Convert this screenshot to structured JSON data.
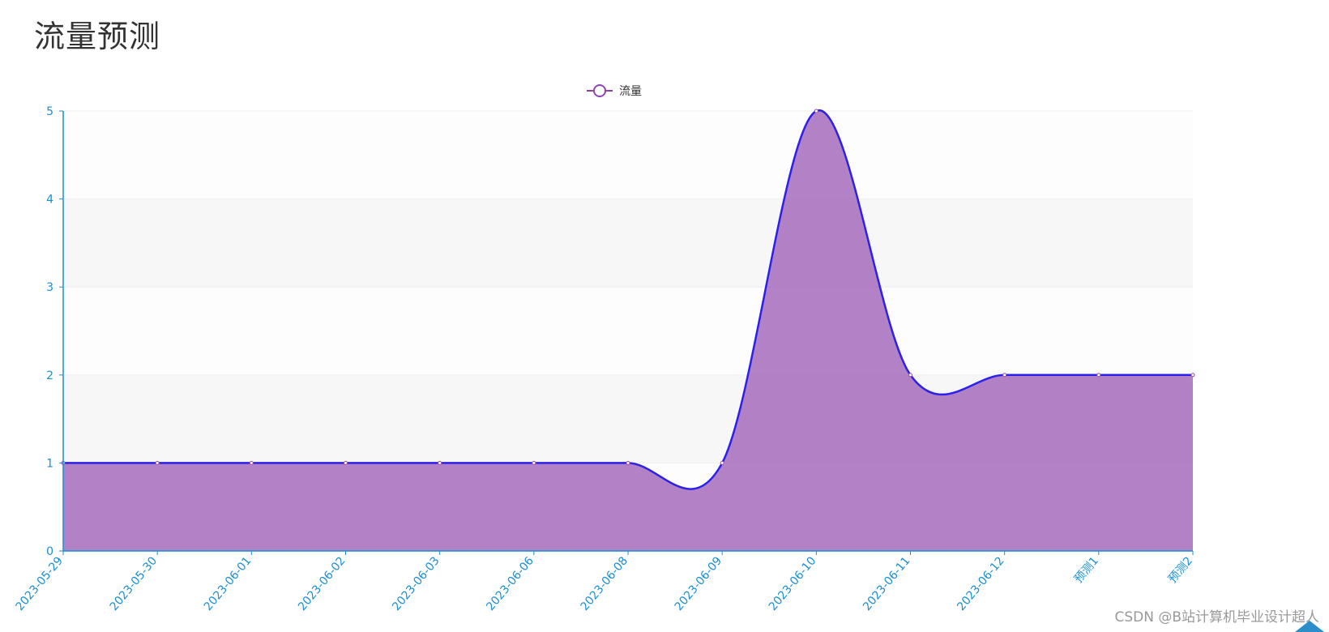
{
  "page": {
    "title": "流量预测",
    "watermark": "CSDN @B站计算机毕业设计超人"
  },
  "colors": {
    "axis": "#1a8fd0",
    "line": "#2b21e8",
    "area": "#a062b8",
    "point_border": "#9b4fa8",
    "band_light": "#f7f7f7",
    "band_white": "#fdfdfd",
    "legend_icon": "#8e44ad"
  },
  "chart_data": {
    "type": "area",
    "title": "",
    "xlabel": "",
    "ylabel": "",
    "ylim": [
      0,
      5
    ],
    "yticks": [
      0,
      1,
      2,
      3,
      4,
      5
    ],
    "grid": true,
    "legend_placement": "top-center",
    "smooth": true,
    "categories": [
      "2023-05-29",
      "2023-05-30",
      "2023-06-01",
      "2023-06-02",
      "2023-06-03",
      "2023-06-06",
      "2023-06-08",
      "2023-06-09",
      "2023-06-10",
      "2023-06-11",
      "2023-06-12",
      "预测1",
      "预测2"
    ],
    "series": [
      {
        "name": "流量",
        "values": [
          1,
          1,
          1,
          1,
          1,
          1,
          1,
          1,
          5,
          2,
          2,
          2,
          2
        ]
      }
    ]
  }
}
